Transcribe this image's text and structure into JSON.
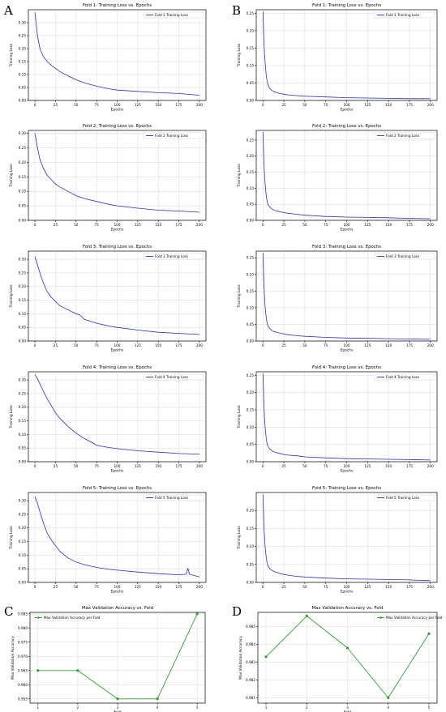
{
  "panel_letters": [
    "A",
    "B",
    "C",
    "D"
  ],
  "colors": {
    "loss": "#2b2bd6",
    "acc": "#2ca02c",
    "grid": "#d9d9d9",
    "axis": "#000000"
  },
  "chart_data": [
    {
      "panel": "A",
      "type": "line",
      "title": "Fold 1: Training Loss vs. Epochs",
      "xlabel": "Epochs",
      "ylabel": "Training Loss",
      "xlim": [
        -8,
        208
      ],
      "ylim": [
        0.0,
        0.35
      ],
      "xticks": [
        0,
        25,
        50,
        75,
        100,
        125,
        150,
        175,
        200
      ],
      "yticks": [
        0.0,
        0.05,
        0.1,
        0.15,
        0.2,
        0.25,
        0.3
      ],
      "ytick_labels": [
        "0.00",
        "0.05",
        "0.10",
        "0.15",
        "0.20",
        "0.25",
        "0.30"
      ],
      "grid": true,
      "legend_position": "top-right",
      "series": [
        {
          "name": "Fold 1 Training Loss",
          "x": [
            0,
            3,
            6,
            10,
            15,
            20,
            30,
            40,
            50,
            60,
            75,
            90,
            100,
            125,
            150,
            175,
            200
          ],
          "y": [
            0.34,
            0.25,
            0.2,
            0.17,
            0.15,
            0.135,
            0.112,
            0.095,
            0.08,
            0.068,
            0.055,
            0.045,
            0.04,
            0.035,
            0.03,
            0.027,
            0.02
          ]
        }
      ]
    },
    {
      "panel": "B",
      "type": "line",
      "title": "Fold 1: Training Loss vs. Epochs",
      "xlabel": "Epochs",
      "ylabel": "Training Loss",
      "xlim": [
        -8,
        208
      ],
      "ylim": [
        0.0,
        0.26
      ],
      "xticks": [
        0,
        25,
        50,
        75,
        100,
        125,
        150,
        175,
        200
      ],
      "yticks": [
        0.0,
        0.05,
        0.1,
        0.15,
        0.2,
        0.25
      ],
      "ytick_labels": [
        "0.00",
        "0.05",
        "0.10",
        "0.15",
        "0.20",
        "0.25"
      ],
      "grid": true,
      "legend_position": "top-right",
      "series": [
        {
          "name": "Fold 1 Training Loss",
          "x": [
            0,
            1,
            2,
            3,
            4,
            5,
            6,
            8,
            10,
            12,
            15,
            20,
            25,
            30,
            40,
            50,
            75,
            100,
            125,
            150,
            175,
            200
          ],
          "y": [
            0.255,
            0.18,
            0.13,
            0.095,
            0.07,
            0.055,
            0.045,
            0.035,
            0.03,
            0.027,
            0.024,
            0.02,
            0.018,
            0.016,
            0.014,
            0.012,
            0.01,
            0.008,
            0.007,
            0.006,
            0.005,
            0.005
          ]
        }
      ]
    },
    {
      "panel": "A",
      "type": "line",
      "title": "Fold 2: Training Loss vs. Epochs",
      "xlabel": "Epochs",
      "ylabel": "Training Loss",
      "xlim": [
        -8,
        208
      ],
      "ylim": [
        0.0,
        0.31
      ],
      "xticks": [
        0,
        25,
        50,
        75,
        100,
        125,
        150,
        175,
        200
      ],
      "yticks": [
        0.0,
        0.05,
        0.1,
        0.15,
        0.2,
        0.25,
        0.3
      ],
      "ytick_labels": [
        "0.00",
        "0.05",
        "0.10",
        "0.15",
        "0.20",
        "0.25",
        "0.30"
      ],
      "grid": true,
      "legend_position": "top-right",
      "series": [
        {
          "name": "Fold 2 Training Loss",
          "x": [
            0,
            3,
            6,
            10,
            15,
            20,
            25,
            30,
            40,
            50,
            60,
            75,
            90,
            100,
            125,
            150,
            175,
            200
          ],
          "y": [
            0.3,
            0.25,
            0.21,
            0.18,
            0.155,
            0.14,
            0.125,
            0.115,
            0.1,
            0.085,
            0.075,
            0.065,
            0.055,
            0.05,
            0.042,
            0.035,
            0.032,
            0.028
          ]
        }
      ]
    },
    {
      "panel": "B",
      "type": "line",
      "title": "Fold 2: Training Loss vs. Epochs",
      "xlabel": "Epochs",
      "ylabel": "Training Loss",
      "xlim": [
        -8,
        208
      ],
      "ylim": [
        0.0,
        0.28
      ],
      "xticks": [
        0,
        25,
        50,
        75,
        100,
        125,
        150,
        175,
        200
      ],
      "yticks": [
        0.0,
        0.05,
        0.1,
        0.15,
        0.2,
        0.25
      ],
      "ytick_labels": [
        "0.00",
        "0.05",
        "0.10",
        "0.15",
        "0.20",
        "0.25"
      ],
      "grid": true,
      "legend_position": "top-right",
      "series": [
        {
          "name": "Fold 2 Training Loss",
          "x": [
            0,
            1,
            2,
            3,
            4,
            5,
            6,
            8,
            10,
            12,
            15,
            20,
            25,
            30,
            40,
            50,
            75,
            100,
            125,
            150,
            175,
            200
          ],
          "y": [
            0.275,
            0.19,
            0.135,
            0.1,
            0.075,
            0.06,
            0.05,
            0.042,
            0.037,
            0.033,
            0.03,
            0.027,
            0.024,
            0.022,
            0.019,
            0.016,
            0.012,
            0.01,
            0.009,
            0.008,
            0.006,
            0.005
          ]
        }
      ]
    },
    {
      "panel": "A",
      "type": "line",
      "title": "Fold 3: Training Loss vs. Epochs",
      "xlabel": "Epochs",
      "ylabel": "Training Loss",
      "xlim": [
        -8,
        208
      ],
      "ylim": [
        0.0,
        0.33
      ],
      "xticks": [
        0,
        25,
        50,
        75,
        100,
        125,
        150,
        175,
        200
      ],
      "yticks": [
        0.0,
        0.05,
        0.1,
        0.15,
        0.2,
        0.25,
        0.3
      ],
      "ytick_labels": [
        "0.00",
        "0.05",
        "0.10",
        "0.15",
        "0.20",
        "0.25",
        "0.30"
      ],
      "grid": true,
      "legend_position": "top-right",
      "series": [
        {
          "name": "Fold 3 Training Loss",
          "x": [
            0,
            3,
            6,
            10,
            15,
            20,
            25,
            30,
            40,
            50,
            55,
            60,
            75,
            90,
            100,
            125,
            150,
            175,
            200
          ],
          "y": [
            0.31,
            0.28,
            0.25,
            0.215,
            0.18,
            0.16,
            0.145,
            0.13,
            0.115,
            0.1,
            0.095,
            0.08,
            0.065,
            0.055,
            0.05,
            0.04,
            0.032,
            0.028,
            0.024
          ]
        }
      ]
    },
    {
      "panel": "B",
      "type": "line",
      "title": "Fold 3: Training Loss vs. Epochs",
      "xlabel": "Epochs",
      "ylabel": "Training Loss",
      "xlim": [
        -8,
        208
      ],
      "ylim": [
        0.0,
        0.27
      ],
      "xticks": [
        0,
        25,
        50,
        75,
        100,
        125,
        150,
        175,
        200
      ],
      "yticks": [
        0.0,
        0.05,
        0.1,
        0.15,
        0.2,
        0.25
      ],
      "ytick_labels": [
        "0.00",
        "0.05",
        "0.10",
        "0.15",
        "0.20",
        "0.25"
      ],
      "grid": true,
      "legend_position": "top-right",
      "series": [
        {
          "name": "Fold 3 Training Loss",
          "x": [
            0,
            1,
            2,
            3,
            4,
            5,
            6,
            8,
            10,
            12,
            15,
            20,
            25,
            30,
            40,
            50,
            75,
            100,
            125,
            150,
            175,
            200
          ],
          "y": [
            0.265,
            0.18,
            0.125,
            0.09,
            0.068,
            0.054,
            0.045,
            0.038,
            0.033,
            0.03,
            0.027,
            0.024,
            0.021,
            0.019,
            0.016,
            0.014,
            0.011,
            0.009,
            0.008,
            0.007,
            0.006,
            0.005
          ]
        }
      ]
    },
    {
      "panel": "A",
      "type": "line",
      "title": "Fold 4: Training Loss vs. Epochs",
      "xlabel": "Epochs",
      "ylabel": "Training Loss",
      "xlim": [
        -8,
        208
      ],
      "ylim": [
        0.0,
        0.33
      ],
      "xticks": [
        0,
        25,
        50,
        75,
        100,
        125,
        150,
        175,
        200
      ],
      "yticks": [
        0.0,
        0.05,
        0.1,
        0.15,
        0.2,
        0.25,
        0.3
      ],
      "ytick_labels": [
        "0.00",
        "0.05",
        "0.10",
        "0.15",
        "0.20",
        "0.25",
        "0.30"
      ],
      "grid": true,
      "legend_position": "top-right",
      "series": [
        {
          "name": "Fold 4 Training Loss",
          "x": [
            0,
            3,
            6,
            10,
            15,
            20,
            25,
            30,
            40,
            50,
            60,
            70,
            75,
            90,
            100,
            125,
            150,
            175,
            200
          ],
          "y": [
            0.32,
            0.305,
            0.285,
            0.26,
            0.23,
            0.205,
            0.18,
            0.16,
            0.13,
            0.105,
            0.085,
            0.07,
            0.06,
            0.052,
            0.048,
            0.04,
            0.035,
            0.03,
            0.028
          ]
        }
      ]
    },
    {
      "panel": "B",
      "type": "line",
      "title": "Fold 4: Training Loss vs. Epochs",
      "xlabel": "Epochs",
      "ylabel": "Training Loss",
      "xlim": [
        -8,
        208
      ],
      "ylim": [
        0.0,
        0.26
      ],
      "xticks": [
        0,
        25,
        50,
        75,
        100,
        125,
        150,
        175,
        200
      ],
      "yticks": [
        0.0,
        0.05,
        0.1,
        0.15,
        0.2,
        0.25
      ],
      "ytick_labels": [
        "0.00",
        "0.05",
        "0.10",
        "0.15",
        "0.20",
        "0.25"
      ],
      "grid": true,
      "legend_position": "top-right",
      "series": [
        {
          "name": "Fold 4 Training Loss",
          "x": [
            0,
            1,
            2,
            3,
            4,
            5,
            6,
            8,
            10,
            12,
            15,
            20,
            25,
            30,
            40,
            50,
            75,
            100,
            125,
            150,
            175,
            200
          ],
          "y": [
            0.255,
            0.175,
            0.12,
            0.088,
            0.066,
            0.052,
            0.044,
            0.037,
            0.033,
            0.03,
            0.027,
            0.024,
            0.021,
            0.019,
            0.017,
            0.014,
            0.011,
            0.009,
            0.008,
            0.007,
            0.006,
            0.005
          ]
        }
      ]
    },
    {
      "panel": "A",
      "type": "line",
      "title": "Fold 5: Training Loss vs. Epochs",
      "xlabel": "Epochs",
      "ylabel": "Training Loss",
      "xlim": [
        -8,
        208
      ],
      "ylim": [
        0.0,
        0.33
      ],
      "xticks": [
        0,
        25,
        50,
        75,
        100,
        125,
        150,
        175,
        200
      ],
      "yticks": [
        0.0,
        0.05,
        0.1,
        0.15,
        0.2,
        0.25,
        0.3
      ],
      "ytick_labels": [
        "0.00",
        "0.05",
        "0.10",
        "0.15",
        "0.20",
        "0.25",
        "0.30"
      ],
      "grid": true,
      "legend_position": "top-right",
      "series": [
        {
          "name": "Fold 5 Training Loss",
          "x": [
            0,
            3,
            6,
            10,
            15,
            20,
            25,
            30,
            40,
            50,
            60,
            75,
            90,
            100,
            125,
            150,
            175,
            184,
            186,
            188,
            200
          ],
          "y": [
            0.315,
            0.29,
            0.26,
            0.22,
            0.18,
            0.155,
            0.135,
            0.115,
            0.09,
            0.075,
            0.065,
            0.055,
            0.048,
            0.045,
            0.038,
            0.032,
            0.028,
            0.03,
            0.052,
            0.03,
            0.02
          ]
        }
      ]
    },
    {
      "panel": "B",
      "type": "line",
      "title": "Fold 5: Training Loss vs. Epochs",
      "xlabel": "Epochs",
      "ylabel": "Training Loss",
      "xlim": [
        -8,
        208
      ],
      "ylim": [
        0.0,
        0.25
      ],
      "xticks": [
        0,
        25,
        50,
        75,
        100,
        125,
        150,
        175,
        200
      ],
      "yticks": [
        0.0,
        0.05,
        0.1,
        0.15,
        0.2
      ],
      "ytick_labels": [
        "0.00",
        "0.05",
        "0.10",
        "0.15",
        "0.20"
      ],
      "grid": true,
      "legend_position": "top-right",
      "series": [
        {
          "name": "Fold 5 Training Loss",
          "x": [
            0,
            1,
            2,
            3,
            4,
            5,
            6,
            8,
            10,
            12,
            15,
            20,
            25,
            30,
            40,
            50,
            75,
            100,
            125,
            150,
            175,
            200
          ],
          "y": [
            0.245,
            0.17,
            0.12,
            0.088,
            0.067,
            0.054,
            0.046,
            0.039,
            0.035,
            0.032,
            0.029,
            0.025,
            0.022,
            0.02,
            0.017,
            0.015,
            0.012,
            0.01,
            0.009,
            0.008,
            0.007,
            0.005
          ]
        }
      ]
    },
    {
      "panel": "C",
      "type": "line",
      "title": "Max Validation Accuracy vs. Fold",
      "xlabel": "Fold",
      "ylabel": "Max Validation Accuracy",
      "xlim": [
        0.8,
        5.2
      ],
      "ylim": [
        0.9535,
        0.9855
      ],
      "xticks": [
        1,
        2,
        3,
        4,
        5
      ],
      "yticks": [
        0.955,
        0.96,
        0.965,
        0.97,
        0.975,
        0.98,
        0.985
      ],
      "ytick_labels": [
        "0.955",
        "0.960",
        "0.965",
        "0.970",
        "0.975",
        "0.980",
        "0.985"
      ],
      "grid": true,
      "legend_position": "top-left",
      "markers": true,
      "series": [
        {
          "name": "Max Validation Accuracy per Fold",
          "x": [
            1,
            2,
            3,
            4,
            5
          ],
          "y": [
            0.965,
            0.965,
            0.955,
            0.955,
            0.985
          ]
        }
      ]
    },
    {
      "panel": "D",
      "type": "line",
      "title": "Max Validation Accuracy vs. Fold",
      "xlabel": "Fold",
      "ylabel": "Max Validation Accuracy",
      "xlim": [
        0.8,
        5.2
      ],
      "ylim": [
        0.9807,
        0.9858
      ],
      "xticks": [
        1,
        2,
        3,
        4,
        5
      ],
      "yticks": [
        0.981,
        0.982,
        0.983,
        0.984,
        0.985
      ],
      "ytick_labels": [
        "0.981",
        "0.982",
        "0.983",
        "0.984",
        "0.985"
      ],
      "grid": true,
      "legend_position": "top-right",
      "markers": true,
      "series": [
        {
          "name": "Max Validation Accuracy per Fold",
          "x": [
            1,
            2,
            3,
            4,
            5
          ],
          "y": [
            0.9833,
            0.9856,
            0.9838,
            0.981,
            0.9846
          ]
        }
      ]
    }
  ]
}
